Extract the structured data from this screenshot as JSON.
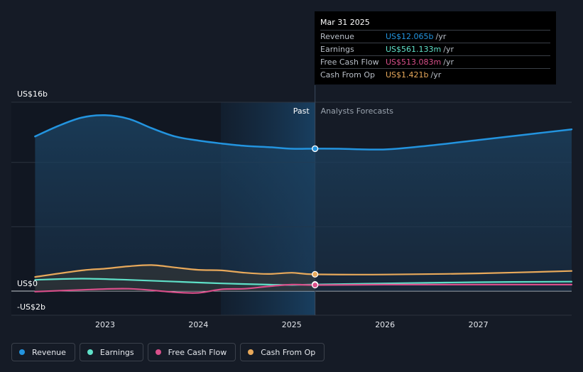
{
  "chart_data": {
    "type": "area",
    "y_axis": {
      "top_label": "US$16b",
      "zero_label": "US$0",
      "bottom_label": "-US$2b",
      "ylim": [
        -2,
        16
      ]
    },
    "x_ticks": [
      "2023",
      "2024",
      "2025",
      "2026",
      "2027"
    ],
    "region_labels": {
      "past": "Past",
      "forecast": "Analysts Forecasts"
    },
    "divider_x": 2025.25,
    "series": [
      {
        "name": "Revenue",
        "color": "#2394df",
        "x": [
          2022.25,
          2022.5,
          2022.75,
          2023.0,
          2023.25,
          2023.5,
          2023.75,
          2024.0,
          2024.25,
          2024.5,
          2024.75,
          2025.0,
          2025.25,
          2025.5,
          2026.0,
          2026.5,
          2027.0,
          2027.5,
          2028.0
        ],
        "y": [
          13.1,
          14.0,
          14.7,
          14.9,
          14.6,
          13.8,
          13.1,
          12.75,
          12.5,
          12.3,
          12.2,
          12.06,
          12.065,
          12.06,
          12.0,
          12.35,
          12.8,
          13.25,
          13.7
        ]
      },
      {
        "name": "Earnings",
        "color": "#5fe0c8",
        "x": [
          2022.25,
          2022.75,
          2023.25,
          2023.75,
          2024.25,
          2024.75,
          2025.0,
          2025.25,
          2026.0,
          2027.0,
          2028.0
        ],
        "y": [
          0.95,
          1.05,
          0.95,
          0.8,
          0.65,
          0.55,
          0.52,
          0.561,
          0.65,
          0.75,
          0.8
        ]
      },
      {
        "name": "Free Cash Flow",
        "color": "#d94f8a",
        "x": [
          2022.25,
          2022.75,
          2023.25,
          2023.75,
          2024.0,
          2024.25,
          2024.5,
          2024.75,
          2025.0,
          2025.25,
          2026.0,
          2027.0,
          2028.0
        ],
        "y": [
          -0.05,
          0.1,
          0.2,
          -0.1,
          -0.15,
          0.15,
          0.2,
          0.4,
          0.55,
          0.513,
          0.55,
          0.55,
          0.55
        ]
      },
      {
        "name": "Cash From Op",
        "color": "#e8a95b",
        "x": [
          2022.25,
          2022.75,
          2023.0,
          2023.25,
          2023.5,
          2023.75,
          2024.0,
          2024.25,
          2024.5,
          2024.75,
          2025.0,
          2025.25,
          2026.0,
          2027.0,
          2028.0
        ],
        "y": [
          1.2,
          1.75,
          1.9,
          2.1,
          2.2,
          2.0,
          1.8,
          1.75,
          1.55,
          1.45,
          1.55,
          1.421,
          1.4,
          1.5,
          1.7
        ]
      }
    ]
  },
  "tooltip": {
    "date": "Mar 31 2025",
    "rows": [
      {
        "name": "Revenue",
        "value": "US$12.065b",
        "unit": "/yr",
        "color": "#2394df"
      },
      {
        "name": "Earnings",
        "value": "US$561.133m",
        "unit": "/yr",
        "color": "#5fe0c8"
      },
      {
        "name": "Free Cash Flow",
        "value": "US$513.083m",
        "unit": "/yr",
        "color": "#d94f8a"
      },
      {
        "name": "Cash From Op",
        "value": "US$1.421b",
        "unit": "/yr",
        "color": "#e8a95b"
      }
    ]
  },
  "legend": [
    {
      "label": "Revenue",
      "color": "#2394df"
    },
    {
      "label": "Earnings",
      "color": "#5fe0c8"
    },
    {
      "label": "Free Cash Flow",
      "color": "#d94f8a"
    },
    {
      "label": "Cash From Op",
      "color": "#e8a95b"
    }
  ]
}
